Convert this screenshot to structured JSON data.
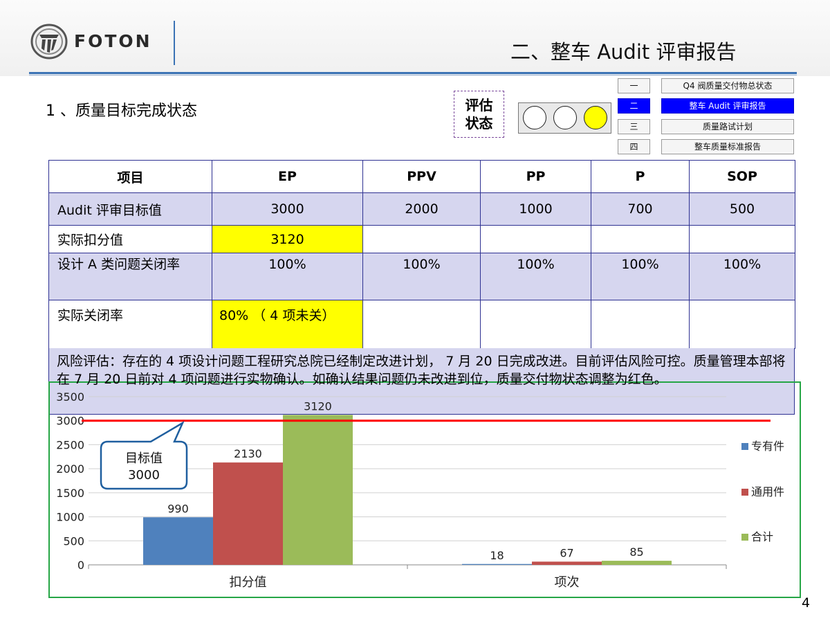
{
  "header": {
    "logo_text": "FOTON",
    "title": "二、整车 Audit 评审报告"
  },
  "section_title": "1 、质量目标完成状态",
  "evaluation": {
    "label_line1": "评估",
    "label_line2": "状态",
    "lights": [
      "off",
      "off",
      "yellow"
    ],
    "status_color": "#ffff00"
  },
  "nav": [
    {
      "num": "一",
      "label": "Q4 阀质量交付物总状态",
      "active": false
    },
    {
      "num": "二",
      "label": "整车 Audit 评审报告",
      "active": true
    },
    {
      "num": "三",
      "label": "质量路试计划",
      "active": false
    },
    {
      "num": "四",
      "label": "整车质量标准报告",
      "active": false
    }
  ],
  "table": {
    "headers": [
      "项目",
      "EP",
      "PPV",
      "PP",
      "P",
      "SOP"
    ],
    "rows": [
      {
        "label": "Audit 评审目标值",
        "cells": [
          "3000",
          "2000",
          "1000",
          "700",
          "500"
        ]
      },
      {
        "label": "实际扣分值",
        "cells": [
          "3120",
          "",
          "",
          "",
          ""
        ]
      },
      {
        "label": "设计 A 类问题关闭率",
        "cells": [
          "100%",
          "100%",
          "100%",
          "100%",
          "100%"
        ]
      },
      {
        "label": "实际关闭率",
        "cells": [
          "80% （ 4 项未关）",
          "",
          "",
          "",
          ""
        ]
      }
    ],
    "risk_text": "风险评估：存在的 4 项设计问题工程研究总院已经制定改进计划， 7 月 20 日完成改进。目前评估风险可控。质量管理本部将在 7 月 20 日前对 4 项问题进行实物确认。如确认结果问题仍未改进到位，质量交付物状态调整为红色。"
  },
  "chart_data": {
    "type": "bar",
    "categories": [
      "扣分值",
      "项次"
    ],
    "series": [
      {
        "name": "专有件",
        "values": [
          990,
          18
        ],
        "color": "#4f81bd"
      },
      {
        "name": "通用件",
        "values": [
          2130,
          67
        ],
        "color": "#c0504d"
      },
      {
        "name": "合计",
        "values": [
          3120,
          85
        ],
        "color": "#9bbb59"
      }
    ],
    "y_ticks": [
      0,
      500,
      1000,
      1500,
      2000,
      2500,
      3000,
      3500
    ],
    "ylim": [
      0,
      3500
    ],
    "grid": true,
    "legend": "right",
    "target_line": 3000,
    "target_line_color": "#ff0000",
    "callout_line1": "目标值",
    "callout_line2": "3000"
  },
  "page_number": "4"
}
